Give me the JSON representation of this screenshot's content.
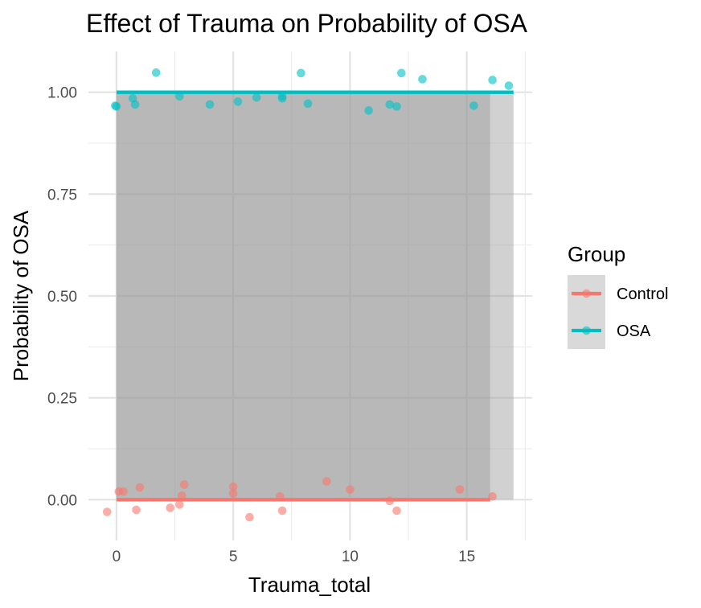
{
  "chart_data": {
    "type": "scatter",
    "title": "Effect of Trauma on Probability of OSA",
    "xlabel": "Trauma_total",
    "ylabel": "Probability of OSA",
    "xlim": [
      -1.2,
      17.8
    ],
    "ylim": [
      -0.1,
      1.1
    ],
    "x_ticks": [
      0,
      5,
      10,
      15
    ],
    "x_tick_labels": [
      "0",
      "5",
      "10",
      "15"
    ],
    "y_ticks": [
      0,
      0.25,
      0.5,
      0.75,
      1.0
    ],
    "y_tick_labels": [
      "0.00",
      "0.25",
      "0.50",
      "0.75",
      "1.00"
    ],
    "grid": true,
    "legend_position": "right",
    "legend_title": "Group",
    "series": [
      {
        "name": "Control",
        "color": "#F8766D",
        "fit_line": {
          "x": [
            0,
            16
          ],
          "y": [
            0,
            0
          ]
        },
        "ribbon": {
          "x": [
            0,
            16
          ],
          "ymin": 0,
          "ymax": 1
        },
        "points": [
          [
            -0.4,
            -0.03
          ],
          [
            0.1,
            0.02
          ],
          [
            0.3,
            0.02
          ],
          [
            0.85,
            -0.025
          ],
          [
            1.0,
            0.03
          ],
          [
            2.3,
            -0.02
          ],
          [
            2.7,
            -0.012
          ],
          [
            2.8,
            0.01
          ],
          [
            2.9,
            0.037
          ],
          [
            5.0,
            0.032
          ],
          [
            5.0,
            0.015
          ],
          [
            5.7,
            -0.043
          ],
          [
            7.0,
            0.008
          ],
          [
            7.1,
            -0.027
          ],
          [
            9.0,
            0.045
          ],
          [
            10.0,
            0.025
          ],
          [
            11.7,
            -0.003
          ],
          [
            12.0,
            -0.027
          ],
          [
            14.7,
            0.025
          ],
          [
            16.1,
            0.008
          ]
        ]
      },
      {
        "name": "OSA",
        "color": "#00BFC4",
        "fit_line": {
          "x": [
            0,
            17
          ],
          "y": [
            1,
            1
          ]
        },
        "ribbon": {
          "x": [
            0,
            17
          ],
          "ymin": 0,
          "ymax": 1
        },
        "points": [
          [
            -0.05,
            0.967
          ],
          [
            0.0,
            0.965
          ],
          [
            0.7,
            0.985
          ],
          [
            0.8,
            0.97
          ],
          [
            1.7,
            1.048
          ],
          [
            2.7,
            0.99
          ],
          [
            4.0,
            0.97
          ],
          [
            5.2,
            0.977
          ],
          [
            6.0,
            0.987
          ],
          [
            7.1,
            0.99
          ],
          [
            7.1,
            0.985
          ],
          [
            7.9,
            1.047
          ],
          [
            8.2,
            0.972
          ],
          [
            10.8,
            0.955
          ],
          [
            11.7,
            0.97
          ],
          [
            12.0,
            0.965
          ],
          [
            12.2,
            1.047
          ],
          [
            13.1,
            1.032
          ],
          [
            15.3,
            0.967
          ],
          [
            16.1,
            1.03
          ],
          [
            16.8,
            1.016
          ]
        ]
      }
    ]
  }
}
